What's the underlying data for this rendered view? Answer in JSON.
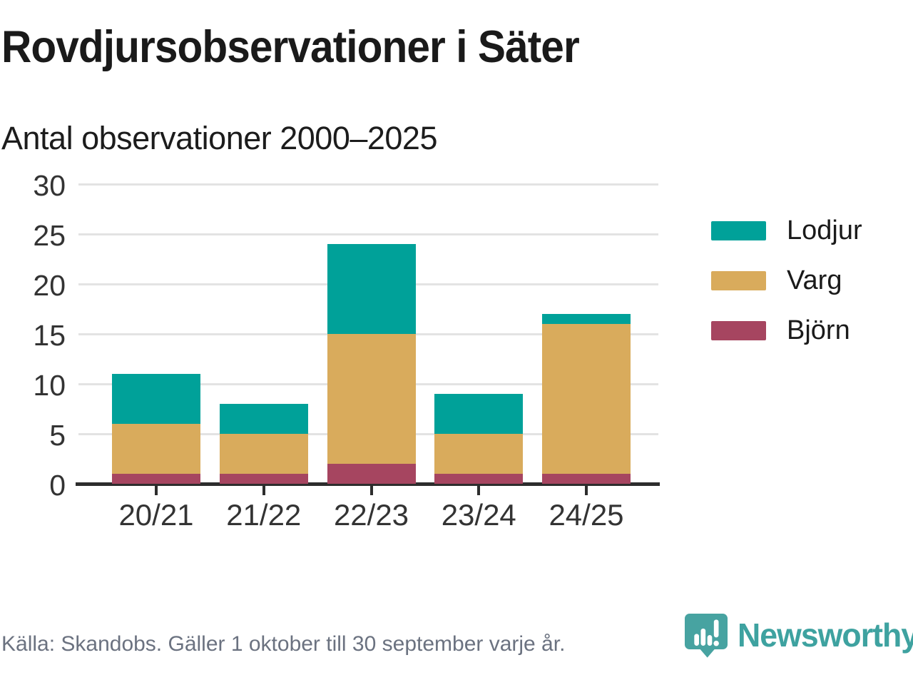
{
  "header": {
    "title": "Rovdjursobservationer i Säter",
    "subtitle": "Antal observationer 2000–2025"
  },
  "chart_data": {
    "type": "bar",
    "stacked": true,
    "title": "Rovdjursobservationer i Säter",
    "subtitle": "Antal observationer 2000–2025",
    "categories": [
      "20/21",
      "21/22",
      "22/23",
      "23/24",
      "24/25"
    ],
    "series": [
      {
        "name": "Björn",
        "color": "#a64560",
        "values": [
          1,
          1,
          2,
          1,
          1
        ]
      },
      {
        "name": "Varg",
        "color": "#d9ab5c",
        "values": [
          5,
          4,
          13,
          4,
          15
        ]
      },
      {
        "name": "Lodjur",
        "color": "#00a199",
        "values": [
          5,
          3,
          9,
          4,
          1
        ]
      }
    ],
    "totals": [
      11,
      8,
      24,
      9,
      17
    ],
    "xlabel": "",
    "ylabel": "",
    "ylim": [
      0,
      30
    ],
    "yticks": [
      0,
      5,
      10,
      15,
      20,
      25,
      30
    ],
    "grid": true,
    "legend_position": "right",
    "legend": [
      {
        "label": "Lodjur",
        "color": "#00a199"
      },
      {
        "label": "Varg",
        "color": "#d9ab5c"
      },
      {
        "label": "Björn",
        "color": "#a64560"
      }
    ]
  },
  "footer": {
    "source": "Källa: Skandobs. Gäller 1 oktober till 30 september varje år.",
    "brand": "Newsworthy",
    "brand_color": "#3ea2a0"
  }
}
